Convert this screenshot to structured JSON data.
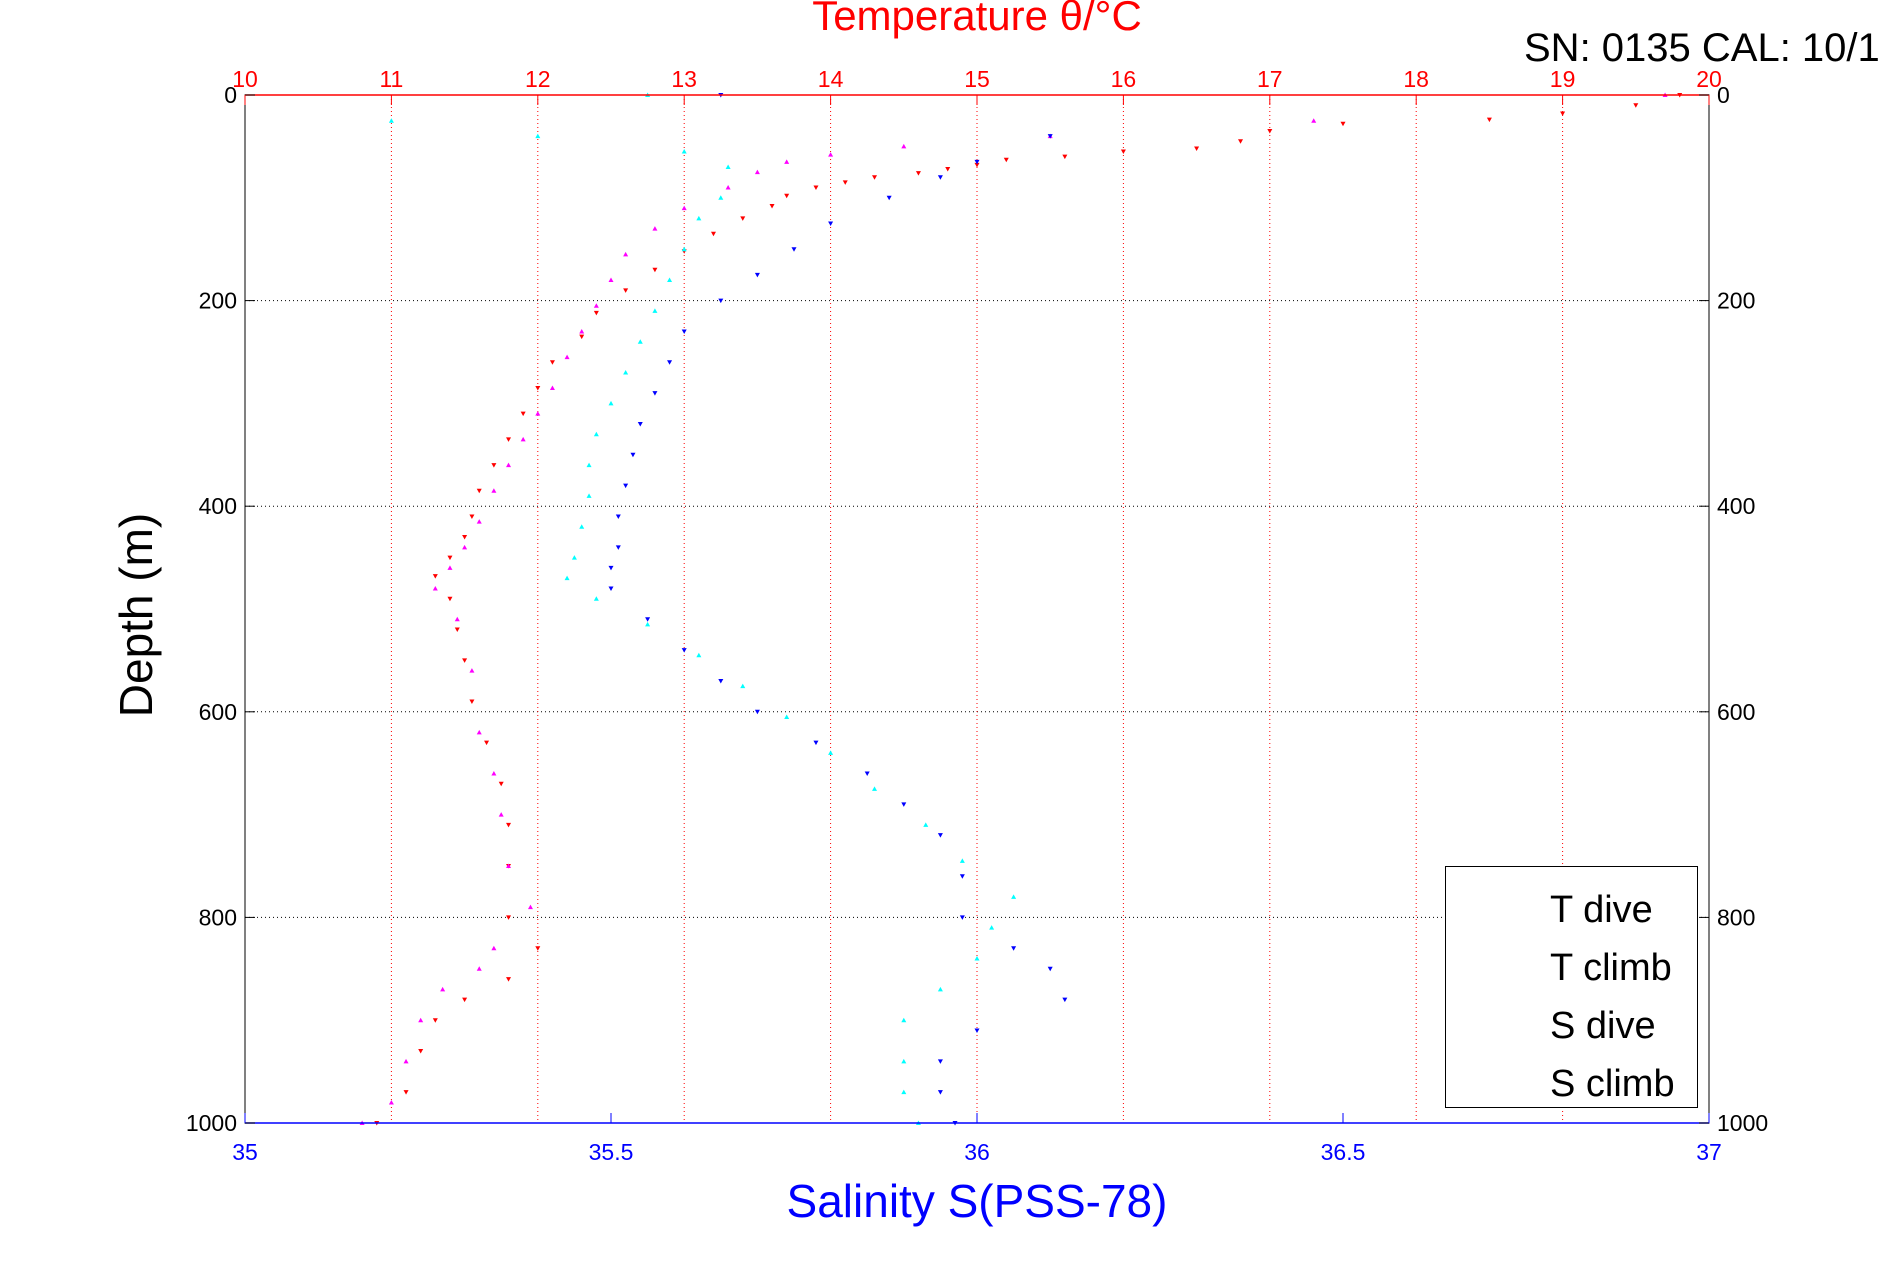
{
  "chart_data": {
    "type": "scatter",
    "title": "Temperature θ/°C",
    "subtitle": "SN: 0135  CAL: 10/1",
    "xlabel": "Salinity S(PSS-78)",
    "ylabel": "Depth (m)",
    "x_axis": {
      "label": "Salinity S(PSS-78)",
      "range": [
        35,
        37
      ],
      "ticks": [
        "35",
        "35.5",
        "36",
        "36.5",
        "37"
      ],
      "color": "#0000ff"
    },
    "x2_axis": {
      "label": "Temperature θ/°C",
      "range": [
        10,
        20
      ],
      "ticks": [
        "10",
        "11",
        "12",
        "13",
        "14",
        "15",
        "16",
        "17",
        "18",
        "19",
        "20"
      ],
      "color": "#ff0000"
    },
    "y_axis": {
      "label": "Depth (m)",
      "range": [
        0,
        1000
      ],
      "reversed": true,
      "ticks": [
        "0",
        "200",
        "400",
        "600",
        "800",
        "1000"
      ]
    },
    "grid": true,
    "legend_position": "bottom-right",
    "series": [
      {
        "name": "T dive",
        "axis": "temperature",
        "color": "#ff0000",
        "marker": "triangle-down",
        "points": [
          [
            19.8,
            0
          ],
          [
            19.5,
            10
          ],
          [
            19.0,
            18
          ],
          [
            18.5,
            24
          ],
          [
            17.5,
            28
          ],
          [
            17.0,
            35
          ],
          [
            16.8,
            45
          ],
          [
            16.5,
            52
          ],
          [
            16.0,
            55
          ],
          [
            15.6,
            60
          ],
          [
            15.2,
            63
          ],
          [
            15.0,
            68
          ],
          [
            14.8,
            72
          ],
          [
            14.6,
            76
          ],
          [
            14.3,
            80
          ],
          [
            14.1,
            85
          ],
          [
            13.9,
            90
          ],
          [
            13.7,
            98
          ],
          [
            13.6,
            108
          ],
          [
            13.4,
            120
          ],
          [
            13.2,
            135
          ],
          [
            13.0,
            152
          ],
          [
            12.8,
            170
          ],
          [
            12.6,
            190
          ],
          [
            12.4,
            212
          ],
          [
            12.3,
            235
          ],
          [
            12.1,
            260
          ],
          [
            12.0,
            285
          ],
          [
            11.9,
            310
          ],
          [
            11.8,
            335
          ],
          [
            11.7,
            360
          ],
          [
            11.6,
            385
          ],
          [
            11.55,
            410
          ],
          [
            11.5,
            430
          ],
          [
            11.4,
            450
          ],
          [
            11.3,
            468
          ],
          [
            11.4,
            490
          ],
          [
            11.45,
            520
          ],
          [
            11.5,
            550
          ],
          [
            11.55,
            590
          ],
          [
            11.65,
            630
          ],
          [
            11.75,
            670
          ],
          [
            11.8,
            710
          ],
          [
            11.8,
            750
          ],
          [
            11.8,
            800
          ],
          [
            12.0,
            830
          ],
          [
            11.8,
            860
          ],
          [
            11.5,
            880
          ],
          [
            11.3,
            900
          ],
          [
            11.2,
            930
          ],
          [
            11.1,
            970
          ],
          [
            10.9,
            1000
          ]
        ]
      },
      {
        "name": "T climb",
        "axis": "temperature",
        "color": "#ff00ff",
        "marker": "triangle-up",
        "points": [
          [
            19.7,
            0
          ],
          [
            17.3,
            25
          ],
          [
            15.5,
            40
          ],
          [
            14.5,
            50
          ],
          [
            14.0,
            58
          ],
          [
            13.7,
            65
          ],
          [
            13.5,
            75
          ],
          [
            13.3,
            90
          ],
          [
            13.0,
            110
          ],
          [
            12.8,
            130
          ],
          [
            12.6,
            155
          ],
          [
            12.5,
            180
          ],
          [
            12.4,
            205
          ],
          [
            12.3,
            230
          ],
          [
            12.2,
            255
          ],
          [
            12.1,
            285
          ],
          [
            12.0,
            310
          ],
          [
            11.9,
            335
          ],
          [
            11.8,
            360
          ],
          [
            11.7,
            385
          ],
          [
            11.6,
            415
          ],
          [
            11.5,
            440
          ],
          [
            11.4,
            460
          ],
          [
            11.3,
            480
          ],
          [
            11.45,
            510
          ],
          [
            11.55,
            560
          ],
          [
            11.6,
            620
          ],
          [
            11.7,
            660
          ],
          [
            11.75,
            700
          ],
          [
            11.8,
            750
          ],
          [
            11.95,
            790
          ],
          [
            11.7,
            830
          ],
          [
            11.6,
            850
          ],
          [
            11.35,
            870
          ],
          [
            11.2,
            900
          ],
          [
            11.1,
            940
          ],
          [
            11.0,
            980
          ],
          [
            10.8,
            1000
          ]
        ]
      },
      {
        "name": "S dive",
        "axis": "salinity",
        "color": "#0000ff",
        "marker": "triangle-down",
        "points": [
          [
            35.65,
            0
          ],
          [
            36.1,
            40
          ],
          [
            36.0,
            65
          ],
          [
            35.95,
            80
          ],
          [
            35.88,
            100
          ],
          [
            35.8,
            125
          ],
          [
            35.75,
            150
          ],
          [
            35.7,
            175
          ],
          [
            35.65,
            200
          ],
          [
            35.6,
            230
          ],
          [
            35.58,
            260
          ],
          [
            35.56,
            290
          ],
          [
            35.54,
            320
          ],
          [
            35.53,
            350
          ],
          [
            35.52,
            380
          ],
          [
            35.51,
            410
          ],
          [
            35.51,
            440
          ],
          [
            35.5,
            460
          ],
          [
            35.5,
            480
          ],
          [
            35.55,
            510
          ],
          [
            35.6,
            540
          ],
          [
            35.65,
            570
          ],
          [
            35.7,
            600
          ],
          [
            35.78,
            630
          ],
          [
            35.85,
            660
          ],
          [
            35.9,
            690
          ],
          [
            35.95,
            720
          ],
          [
            35.98,
            760
          ],
          [
            35.98,
            800
          ],
          [
            36.05,
            830
          ],
          [
            36.1,
            850
          ],
          [
            36.12,
            880
          ],
          [
            36.0,
            910
          ],
          [
            35.95,
            940
          ],
          [
            35.95,
            970
          ],
          [
            35.97,
            1000
          ]
        ]
      },
      {
        "name": "S climb",
        "axis": "salinity",
        "color": "#00ffff",
        "marker": "triangle-up",
        "points": [
          [
            35.55,
            0
          ],
          [
            35.2,
            25
          ],
          [
            35.4,
            40
          ],
          [
            35.6,
            55
          ],
          [
            35.66,
            70
          ],
          [
            35.65,
            100
          ],
          [
            35.62,
            120
          ],
          [
            35.6,
            150
          ],
          [
            35.58,
            180
          ],
          [
            35.56,
            210
          ],
          [
            35.54,
            240
          ],
          [
            35.52,
            270
          ],
          [
            35.5,
            300
          ],
          [
            35.48,
            330
          ],
          [
            35.47,
            360
          ],
          [
            35.47,
            390
          ],
          [
            35.46,
            420
          ],
          [
            35.45,
            450
          ],
          [
            35.44,
            470
          ],
          [
            35.48,
            490
          ],
          [
            35.55,
            515
          ],
          [
            35.62,
            545
          ],
          [
            35.68,
            575
          ],
          [
            35.74,
            605
          ],
          [
            35.8,
            640
          ],
          [
            35.86,
            675
          ],
          [
            35.93,
            710
          ],
          [
            35.98,
            745
          ],
          [
            36.05,
            780
          ],
          [
            36.02,
            810
          ],
          [
            36.0,
            840
          ],
          [
            35.95,
            870
          ],
          [
            35.9,
            900
          ],
          [
            35.9,
            940
          ],
          [
            35.9,
            970
          ],
          [
            35.92,
            1000
          ]
        ]
      }
    ]
  }
}
